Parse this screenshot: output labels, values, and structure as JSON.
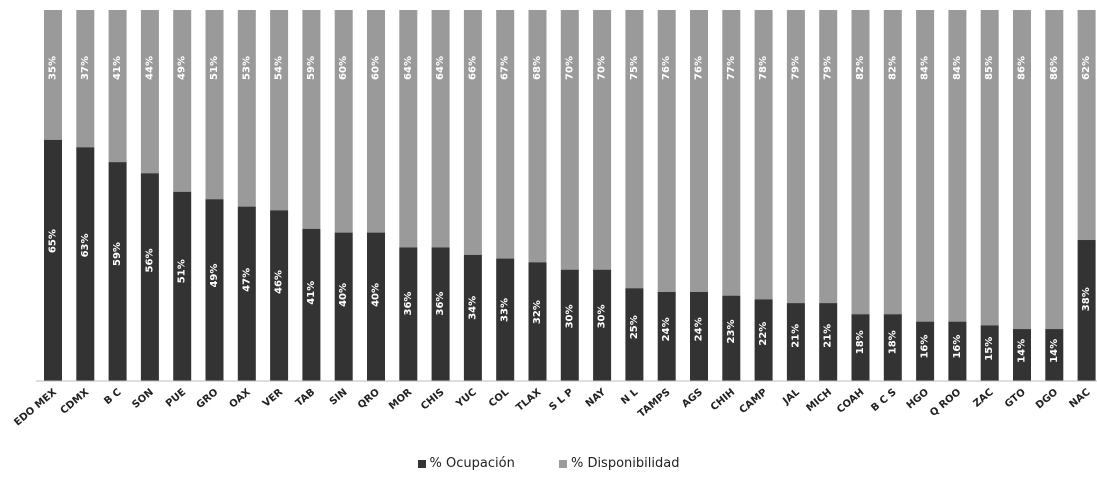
{
  "chart_data": {
    "type": "bar",
    "stacked": true,
    "percent_stacked": true,
    "categories": [
      "EDO MEX",
      "CDMX",
      "B C",
      "SON",
      "PUE",
      "GRO",
      "OAX",
      "VER",
      "TAB",
      "SIN",
      "QRO",
      "MOR",
      "CHIS",
      "YUC",
      "COL",
      "TLAX",
      "S L P",
      "NAY",
      "N L",
      "TAMPS",
      "AGS",
      "CHIH",
      "CAMP",
      "JAL",
      "MICH",
      "COAH",
      "B C S",
      "HGO",
      "Q ROO",
      "ZAC",
      "GTO",
      "DGO",
      "NAC"
    ],
    "series": [
      {
        "name": "% Ocupación",
        "color": "#333333",
        "values": [
          65,
          63,
          59,
          56,
          51,
          49,
          47,
          46,
          41,
          40,
          40,
          36,
          36,
          34,
          33,
          32,
          30,
          30,
          25,
          24,
          24,
          23,
          22,
          21,
          21,
          18,
          18,
          16,
          16,
          15,
          14,
          14,
          38
        ]
      },
      {
        "name": "% Disponibilidad",
        "color": "#9a9a9a",
        "values": [
          35,
          37,
          41,
          44,
          49,
          51,
          53,
          54,
          59,
          60,
          60,
          64,
          64,
          66,
          67,
          68,
          70,
          70,
          75,
          76,
          76,
          77,
          78,
          79,
          79,
          82,
          82,
          84,
          84,
          85,
          86,
          86,
          62
        ]
      }
    ],
    "value_suffix": "%",
    "ylim": [
      0,
      100
    ],
    "grid": false,
    "legend_position": "bottom"
  }
}
